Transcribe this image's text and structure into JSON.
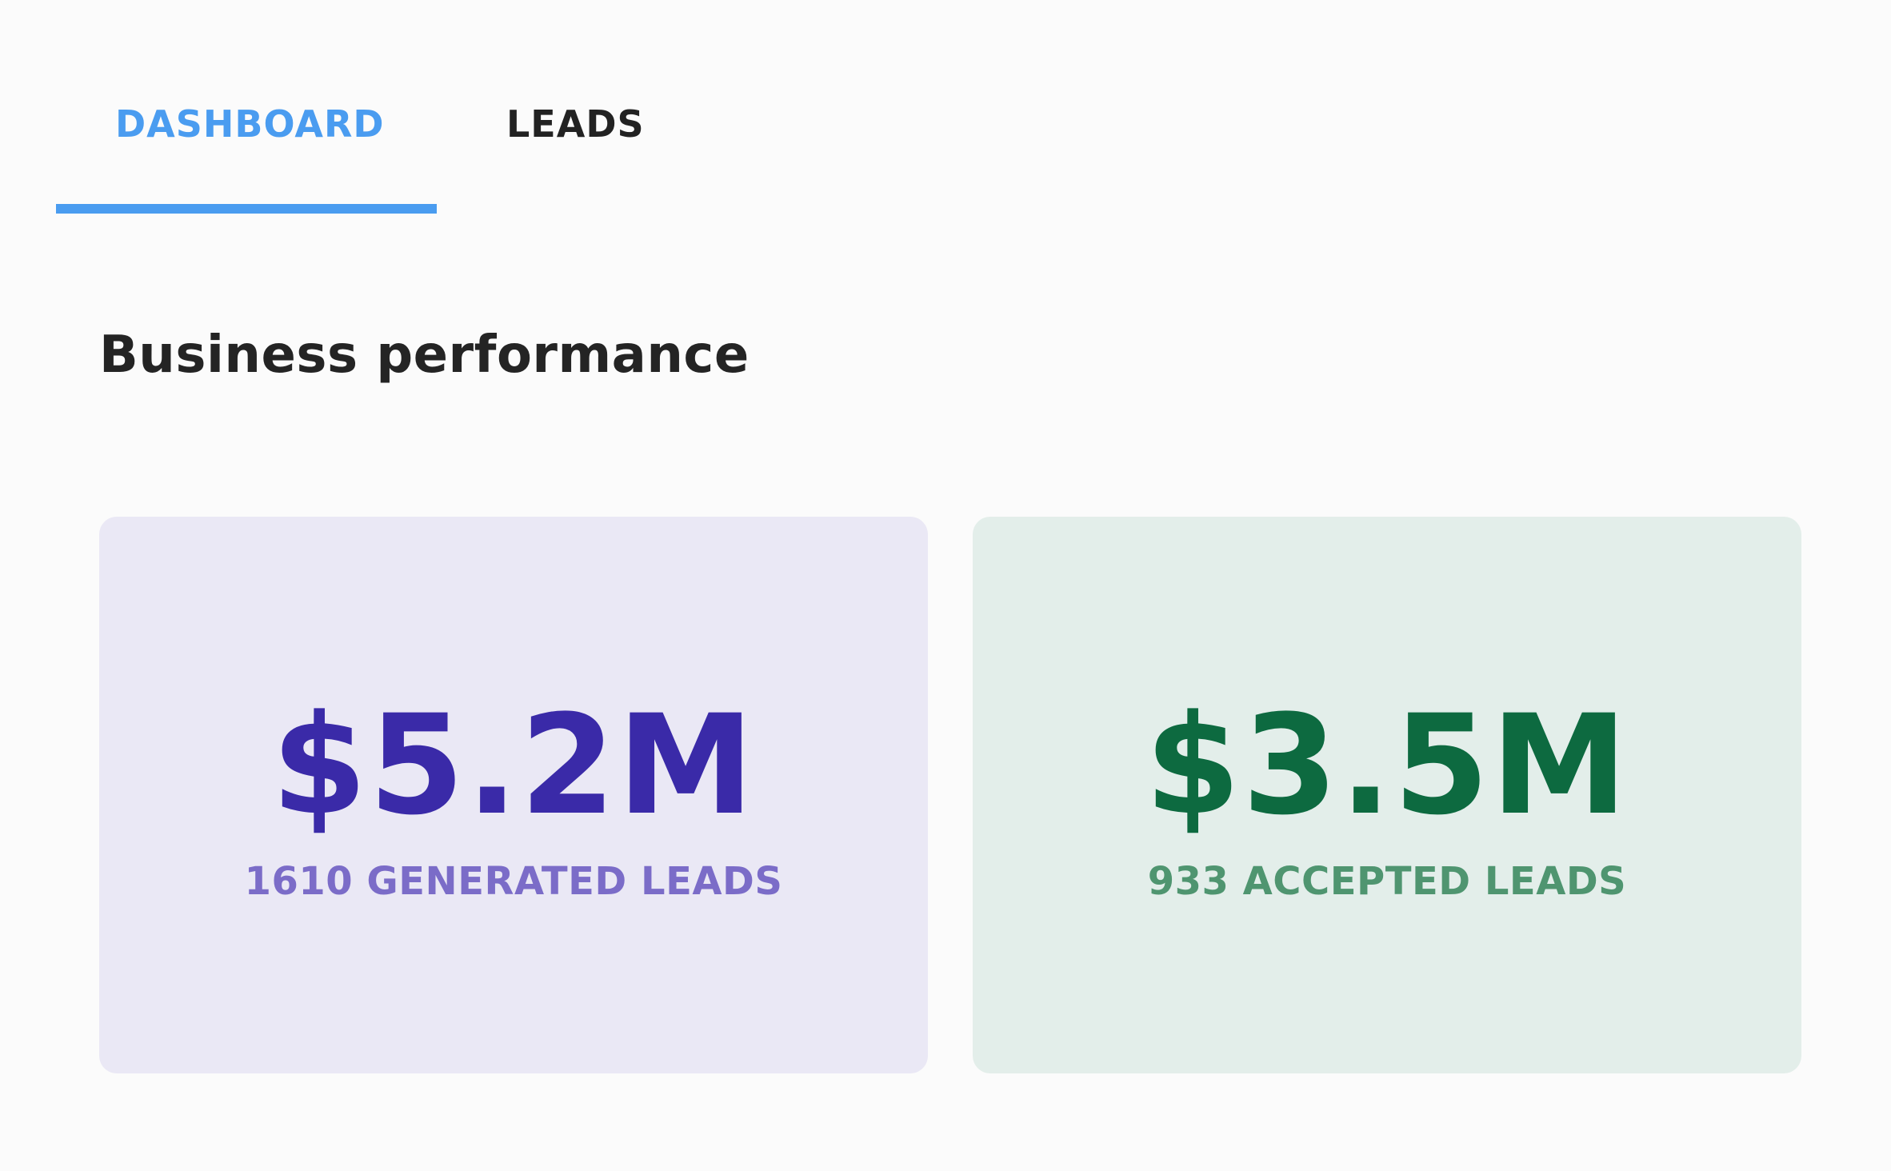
{
  "tabs": {
    "dashboard_label": "DASHBOARD",
    "leads_label": "LEADS",
    "active": "dashboard",
    "active_color": "#4a9cf0"
  },
  "section": {
    "title": "Business performance"
  },
  "cards": {
    "generated": {
      "value": "$5.2M",
      "label": "1610 GENERATED LEADS",
      "background": "#eae8f5",
      "value_color": "#3a2aa8",
      "label_color": "#7b6cc8"
    },
    "accepted": {
      "value": "$3.5M",
      "label": "933 ACCEPTED LEADS",
      "background": "#e3eeea",
      "value_color": "#0d6a40",
      "label_color": "#4f9570"
    }
  }
}
